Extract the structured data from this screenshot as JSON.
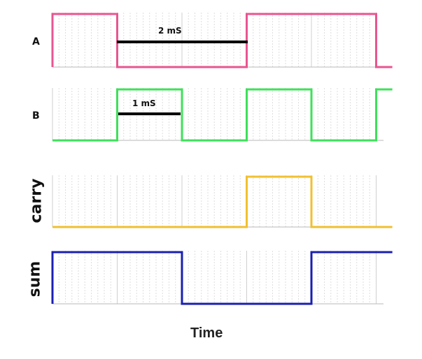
{
  "signals": [
    {
      "id": "a",
      "label": "A",
      "color": "#e8558f",
      "edges": [
        0,
        1,
        3,
        5
      ],
      "end": 5.25,
      "startHigh": true
    },
    {
      "id": "b",
      "label": "B",
      "color": "#3ee05a",
      "edges": [
        0,
        1,
        2,
        3,
        4,
        5
      ],
      "end": 5.25,
      "startHigh": false
    },
    {
      "id": "carry",
      "label": "carry",
      "color": "#f0c030",
      "edges": [
        0,
        3,
        4
      ],
      "end": 5.25,
      "startHigh": false
    },
    {
      "id": "sum",
      "label": "sum",
      "color": "#1a1fb0",
      "edges": [
        0,
        2,
        4
      ],
      "end": 5.25,
      "startHigh": true
    }
  ],
  "annotations": {
    "period_a": "2 mS",
    "period_b": "1 mS"
  },
  "axis": {
    "xlabel": "Time"
  }
}
